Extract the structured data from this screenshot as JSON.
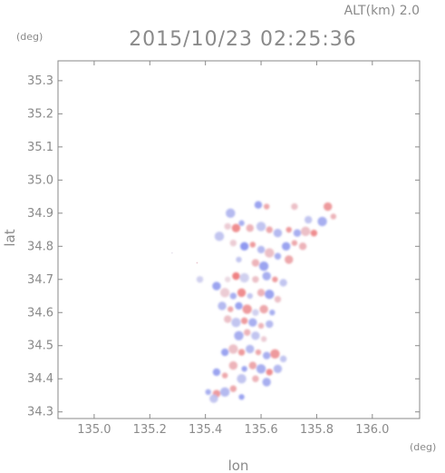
{
  "header": {
    "altitude_label": "ALT(km) 2.0",
    "timestamp": "2015/10/23 02:25:36"
  },
  "chart_data": {
    "type": "heatmap",
    "title": "2015/10/23 02:25:36",
    "subtitle": "ALT(km) 2.0",
    "xlabel": "lon",
    "ylabel": "lat",
    "x_unit": "(deg)",
    "y_unit": "(deg)",
    "xlim": [
      134.87,
      136.17
    ],
    "ylim": [
      34.28,
      35.36
    ],
    "x_ticks": [
      "135.0",
      "135.2",
      "135.4",
      "135.6",
      "135.8",
      "136.0"
    ],
    "y_ticks": [
      "34.3",
      "34.4",
      "34.5",
      "34.6",
      "34.7",
      "34.8",
      "34.9",
      "35.0",
      "35.1",
      "35.2",
      "35.3"
    ],
    "grid": false,
    "colorscale": {
      "negative": "#5a6cf0",
      "neutral": "#e8e4ee",
      "positive": "#f05a5a"
    },
    "points": [
      [
        135.62,
        34.92,
        0.5
      ],
      [
        135.59,
        34.925,
        -0.6
      ],
      [
        135.49,
        34.9,
        -0.4
      ],
      [
        135.72,
        34.92,
        0.3
      ],
      [
        135.84,
        34.92,
        0.6
      ],
      [
        135.86,
        34.89,
        0.4
      ],
      [
        135.77,
        34.88,
        -0.3
      ],
      [
        135.82,
        34.875,
        -0.5
      ],
      [
        135.48,
        34.86,
        0.2
      ],
      [
        135.51,
        34.855,
        0.7
      ],
      [
        135.53,
        34.87,
        -0.5
      ],
      [
        135.56,
        34.855,
        0.4
      ],
      [
        135.6,
        34.86,
        -0.3
      ],
      [
        135.63,
        34.85,
        0.5
      ],
      [
        135.66,
        34.84,
        -0.4
      ],
      [
        135.7,
        34.85,
        0.6
      ],
      [
        135.73,
        34.84,
        -0.5
      ],
      [
        135.76,
        34.845,
        0.3
      ],
      [
        135.79,
        34.84,
        0.7
      ],
      [
        135.69,
        34.8,
        -0.6
      ],
      [
        135.72,
        34.81,
        0.5
      ],
      [
        135.75,
        34.8,
        0.4
      ],
      [
        135.45,
        34.83,
        -0.3
      ],
      [
        135.5,
        34.81,
        0.2
      ],
      [
        135.54,
        34.8,
        -0.7
      ],
      [
        135.57,
        34.805,
        0.6
      ],
      [
        135.6,
        34.79,
        -0.4
      ],
      [
        135.63,
        34.78,
        0.3
      ],
      [
        135.66,
        34.77,
        -0.5
      ],
      [
        135.7,
        34.76,
        0.5
      ],
      [
        135.52,
        34.76,
        -0.3
      ],
      [
        135.58,
        34.75,
        0.4
      ],
      [
        135.61,
        34.74,
        -0.6
      ],
      [
        135.38,
        34.7,
        -0.2
      ],
      [
        135.44,
        34.68,
        -0.6
      ],
      [
        135.48,
        34.7,
        0.1
      ],
      [
        135.51,
        34.71,
        0.8
      ],
      [
        135.54,
        34.705,
        -0.2
      ],
      [
        135.58,
        34.7,
        0.3
      ],
      [
        135.62,
        34.71,
        -0.5
      ],
      [
        135.65,
        34.7,
        0.6
      ],
      [
        135.68,
        34.69,
        -0.3
      ],
      [
        135.47,
        34.66,
        0.2
      ],
      [
        135.5,
        34.65,
        -0.5
      ],
      [
        135.53,
        34.66,
        0.7
      ],
      [
        135.56,
        34.65,
        -0.3
      ],
      [
        135.6,
        34.66,
        0.4
      ],
      [
        135.63,
        34.655,
        -0.6
      ],
      [
        135.66,
        34.64,
        0.3
      ],
      [
        135.46,
        34.62,
        -0.4
      ],
      [
        135.49,
        34.61,
        0.5
      ],
      [
        135.52,
        34.62,
        -0.6
      ],
      [
        135.55,
        34.61,
        0.6
      ],
      [
        135.58,
        34.6,
        -0.2
      ],
      [
        135.61,
        34.61,
        0.5
      ],
      [
        135.64,
        34.6,
        -0.5
      ],
      [
        135.48,
        34.58,
        0.3
      ],
      [
        135.51,
        34.57,
        -0.3
      ],
      [
        135.54,
        34.575,
        0.6
      ],
      [
        135.57,
        34.57,
        -0.5
      ],
      [
        135.6,
        34.56,
        0.4
      ],
      [
        135.63,
        34.565,
        -0.4
      ],
      [
        135.52,
        34.53,
        -0.5
      ],
      [
        135.55,
        34.54,
        0.4
      ],
      [
        135.58,
        34.53,
        -0.3
      ],
      [
        135.61,
        34.52,
        0.2
      ],
      [
        135.47,
        34.48,
        -0.6
      ],
      [
        135.5,
        34.49,
        0.3
      ],
      [
        135.53,
        34.48,
        0.6
      ],
      [
        135.56,
        34.49,
        -0.4
      ],
      [
        135.59,
        34.48,
        0.5
      ],
      [
        135.62,
        34.47,
        -0.5
      ],
      [
        135.65,
        34.475,
        0.6
      ],
      [
        135.68,
        34.46,
        -0.3
      ],
      [
        135.5,
        34.44,
        0.4
      ],
      [
        135.54,
        34.43,
        -0.6
      ],
      [
        135.57,
        34.44,
        0.5
      ],
      [
        135.6,
        34.43,
        -0.5
      ],
      [
        135.63,
        34.42,
        0.7
      ],
      [
        135.66,
        34.43,
        -0.4
      ],
      [
        135.47,
        34.41,
        0.5
      ],
      [
        135.44,
        34.42,
        -0.6
      ],
      [
        135.53,
        34.4,
        -0.3
      ],
      [
        135.58,
        34.4,
        0.4
      ],
      [
        135.62,
        34.39,
        -0.5
      ],
      [
        135.41,
        34.36,
        -0.5
      ],
      [
        135.44,
        34.355,
        0.6
      ],
      [
        135.47,
        34.36,
        -0.4
      ],
      [
        135.5,
        34.37,
        0.5
      ],
      [
        135.43,
        34.34,
        -0.3
      ],
      [
        135.53,
        34.345,
        -0.6
      ]
    ],
    "isolated_points": [
      [
        135.28,
        34.78,
        0.0
      ],
      [
        135.37,
        34.75,
        0.2
      ]
    ]
  }
}
